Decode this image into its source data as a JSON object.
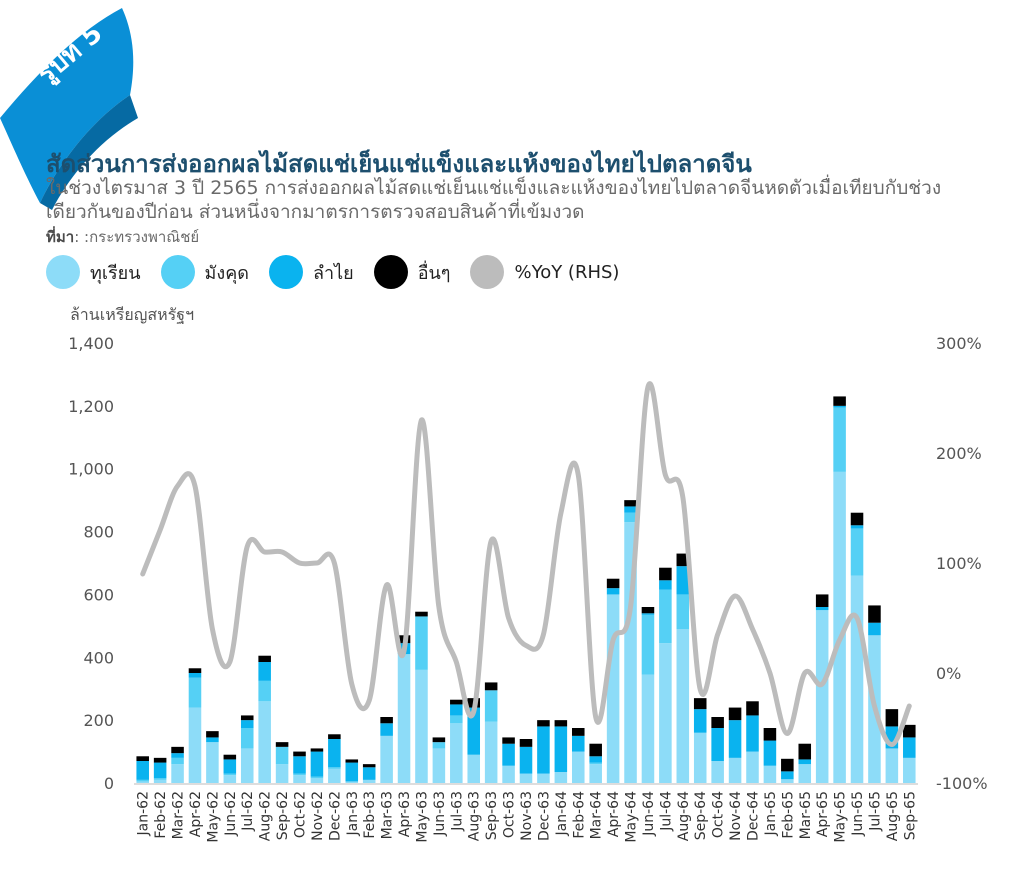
{
  "badge": {
    "label": "รูปที่ 5",
    "color": "#0a8fd6"
  },
  "header": {
    "title": "สัดส่วนการส่งออกผลไม้สดแช่เย็นแช่แข็งและแห้งของไทยไปตลาดจีน",
    "subtitle": "ในช่วงไตรมาส 3 ปี 2565 การส่งออกผลไม้สดแช่เย็นแช่แข็งและแห้งของไทยไปตลาดจีนหดตัวเมื่อเทียบกับช่วงเดียวกันของปีก่อน ส่วนหนึ่งจากมาตรการตรวจสอบสินค้าที่เข้มงวด",
    "source_label": "ที่มา",
    "source_text": ": :กระทรวงพาณิชย์"
  },
  "chart_data": {
    "type": "bar",
    "stacked": true,
    "ylabel": "ล้านเหรียญสหรัฐฯ",
    "ylim": [
      0,
      1400
    ],
    "yticks": [
      0,
      200,
      400,
      600,
      800,
      1000,
      1200,
      1400
    ],
    "yticks_labels": [
      "0",
      "200",
      "400",
      "600",
      "800",
      "1,000",
      "1,200",
      "1,400"
    ],
    "y2lim": [
      -100,
      300
    ],
    "y2ticks": [
      -100,
      0,
      100,
      200,
      300
    ],
    "y2ticks_labels": [
      "-100%",
      "0%",
      "100%",
      "200%",
      "300%"
    ],
    "categories": [
      "Jan-62",
      "Feb-62",
      "Mar-62",
      "Apr-62",
      "May-62",
      "Jun-62",
      "Jul-62",
      "Aug-62",
      "Sep-62",
      "Oct-62",
      "Nov-62",
      "Dec-62",
      "Jan-63",
      "Feb-63",
      "Mar-63",
      "Apr-63",
      "May-63",
      "Jun-63",
      "Jul-63",
      "Aug-63",
      "Sep-63",
      "Oct-63",
      "Nov-63",
      "Dec-63",
      "Jan-64",
      "Feb-64",
      "Mar-64",
      "Apr-64",
      "May-64",
      "Jun-64",
      "Jul-64",
      "Aug-64",
      "Sep-64",
      "Oct-64",
      "Nov-64",
      "Dec-64",
      "Jan-65",
      "Feb-65",
      "Mar-65",
      "Apr-65",
      "May-65",
      "Jun-65",
      "Jul-65",
      "Aug-65",
      "Sep-65"
    ],
    "series": [
      {
        "name": "ทุเรียน",
        "color": "#8ddcf8",
        "values": [
          5,
          10,
          60,
          240,
          130,
          25,
          110,
          260,
          60,
          25,
          15,
          45,
          5,
          10,
          150,
          410,
          360,
          110,
          190,
          90,
          195,
          55,
          30,
          30,
          35,
          100,
          60,
          600,
          830,
          345,
          445,
          490,
          160,
          70,
          80,
          100,
          55,
          12,
          60,
          550,
          990,
          660,
          470,
          110,
          80
        ]
      },
      {
        "name": "มังคุด",
        "color": "#55d0f5",
        "values": [
          5,
          5,
          20,
          95,
          0,
          5,
          65,
          65,
          55,
          5,
          5,
          5,
          0,
          0,
          0,
          0,
          170,
          20,
          25,
          0,
          100,
          0,
          0,
          0,
          0,
          0,
          5,
          0,
          30,
          190,
          170,
          110,
          0,
          0,
          0,
          0,
          0,
          0,
          0,
          0,
          205,
          150,
          0,
          0,
          0
        ]
      },
      {
        "name": "ลำไย",
        "color": "#0ab3ef",
        "values": [
          60,
          50,
          15,
          15,
          15,
          45,
          25,
          60,
          0,
          55,
          80,
          90,
          60,
          40,
          40,
          35,
          0,
          0,
          35,
          150,
          0,
          70,
          85,
          150,
          145,
          50,
          20,
          20,
          20,
          5,
          30,
          90,
          75,
          105,
          120,
          115,
          80,
          25,
          15,
          10,
          5,
          10,
          40,
          70,
          65
        ]
      },
      {
        "name": "อื่นๆ",
        "color": "#000000",
        "values": [
          15,
          15,
          20,
          15,
          20,
          15,
          15,
          20,
          15,
          15,
          10,
          15,
          10,
          10,
          20,
          25,
          15,
          15,
          15,
          30,
          25,
          20,
          25,
          20,
          20,
          25,
          40,
          30,
          20,
          20,
          40,
          40,
          35,
          35,
          40,
          45,
          40,
          40,
          50,
          40,
          30,
          40,
          55,
          55,
          40
        ]
      },
      {
        "name": "%YoY (RHS)",
        "color": "#bcbcbc",
        "type": "line",
        "axis": "right",
        "values": [
          90,
          130,
          170,
          170,
          40,
          10,
          115,
          110,
          110,
          100,
          100,
          100,
          -10,
          -25,
          80,
          20,
          230,
          60,
          10,
          -35,
          120,
          50,
          25,
          35,
          145,
          180,
          -40,
          30,
          60,
          260,
          180,
          160,
          -15,
          35,
          70,
          40,
          0,
          -55,
          0,
          -10,
          30,
          50,
          -30,
          -65,
          -30
        ]
      }
    ]
  }
}
